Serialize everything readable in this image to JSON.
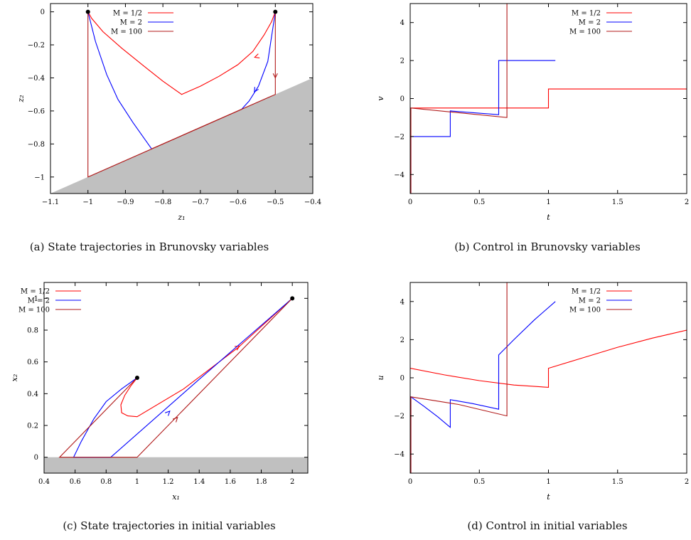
{
  "chart_data": [
    {
      "type": "line",
      "caption": "(a) State trajectories in Brunovsky variables",
      "xlabel": "z₁",
      "ylabel": "z₂",
      "xlim": [
        -1.1,
        -0.4
      ],
      "ylim": [
        -1.1,
        0.05
      ],
      "xticks": [
        -1.1,
        -1,
        -0.9,
        -0.8,
        -0.7,
        -0.6,
        -0.5,
        -0.4
      ],
      "xtick_labels": [
        "−1.1",
        "−1",
        "−0.9",
        "−0.8",
        "−0.7",
        "−0.6",
        "−0.5",
        "−0.4"
      ],
      "yticks": [
        0,
        -0.2,
        -0.4,
        -0.6,
        -0.8,
        -1
      ],
      "ytick_labels": [
        "0",
        "−0.2",
        "−0.4",
        "−0.6",
        "−0.8",
        "−1"
      ],
      "legend_position": "top-center",
      "shaded_region": {
        "color": "#c0c0c0",
        "polygon": [
          [
            -1.1,
            -1.1
          ],
          [
            -0.4,
            -0.4
          ],
          [
            -0.4,
            -1.1
          ]
        ]
      },
      "markers": [
        [
          -1,
          0
        ],
        [
          -0.5,
          0
        ]
      ],
      "series": [
        {
          "name": "M = 1/2",
          "color": "#ff0000",
          "segments": [
            [
              [
                -1,
                0
              ],
              [
                -0.99,
                -0.04
              ],
              [
                -0.96,
                -0.12
              ],
              [
                -0.91,
                -0.22
              ],
              [
                -0.85,
                -0.33
              ],
              [
                -0.8,
                -0.42
              ],
              [
                -0.75,
                -0.5
              ],
              [
                -0.7,
                -0.45
              ],
              [
                -0.65,
                -0.39
              ],
              [
                -0.6,
                -0.32
              ],
              [
                -0.56,
                -0.24
              ],
              [
                -0.53,
                -0.14
              ],
              [
                -0.51,
                -0.06
              ],
              [
                -0.5,
                0
              ]
            ]
          ],
          "arrows": [
            {
              "at": [
                -0.535,
                -0.26
              ],
              "to": [
                -0.555,
                -0.275
              ]
            }
          ]
        },
        {
          "name": "M = 2",
          "color": "#0000ff",
          "segments": [
            [
              [
                -1,
                0
              ],
              [
                -0.98,
                -0.18
              ],
              [
                -0.95,
                -0.38
              ],
              [
                -0.92,
                -0.53
              ],
              [
                -0.88,
                -0.67
              ],
              [
                -0.83,
                -0.83
              ]
            ],
            [
              [
                -0.5,
                0
              ],
              [
                -0.52,
                -0.3
              ],
              [
                -0.545,
                -0.45
              ],
              [
                -0.57,
                -0.54
              ],
              [
                -0.59,
                -0.59
              ]
            ]
          ],
          "arrows": [
            {
              "at": [
                -0.548,
                -0.455
              ],
              "to": [
                -0.556,
                -0.485
              ]
            }
          ]
        },
        {
          "name": "M = 100",
          "color": "#b01818",
          "segments": [
            [
              [
                -1,
                0
              ],
              [
                -1,
                -1
              ],
              [
                -0.5,
                -0.5
              ],
              [
                -0.5,
                0
              ]
            ],
            [
              [
                -0.83,
                -0.83
              ],
              [
                -0.59,
                -0.59
              ]
            ]
          ],
          "arrows": [
            {
              "at": [
                -0.5,
                -0.36
              ],
              "to": [
                -0.5,
                -0.4
              ]
            }
          ]
        }
      ]
    },
    {
      "type": "line",
      "caption": "(b) Control in Brunovsky variables",
      "xlabel": "t",
      "ylabel": "v",
      "xlim": [
        0,
        2
      ],
      "ylim": [
        -5,
        5
      ],
      "xticks": [
        0,
        0.5,
        1,
        1.5,
        2
      ],
      "xtick_labels": [
        "0",
        "0.5",
        "1",
        "1.5",
        "2"
      ],
      "yticks": [
        4,
        2,
        0,
        -2,
        -4
      ],
      "ytick_labels": [
        "4",
        "2",
        "0",
        "−2",
        "−4"
      ],
      "legend_position": "top-right",
      "series": [
        {
          "name": "M = 1/2",
          "color": "#ff0000",
          "segments": [
            [
              [
                0,
                -0.5
              ],
              [
                1,
                -0.5
              ],
              [
                1,
                0.5
              ],
              [
                2,
                0.5
              ]
            ]
          ]
        },
        {
          "name": "M = 2",
          "color": "#0000ff",
          "segments": [
            [
              [
                0.005,
                -5
              ],
              [
                0.005,
                -2
              ],
              [
                0.29,
                -2
              ],
              [
                0.29,
                -0.65
              ],
              [
                0.64,
                -0.85
              ],
              [
                0.64,
                2
              ],
              [
                1.05,
                2
              ]
            ]
          ]
        },
        {
          "name": "M = 100",
          "color": "#b01818",
          "segments": [
            [
              [
                0.005,
                -5
              ],
              [
                0.005,
                -0.5
              ],
              [
                0.7,
                -1
              ],
              [
                0.7,
                5
              ]
            ]
          ]
        }
      ]
    },
    {
      "type": "line",
      "caption": "(c) State trajectories in initial variables",
      "xlabel": "x₁",
      "ylabel": "x₂",
      "xlim": [
        0.4,
        2.1
      ],
      "ylim": [
        -0.1,
        1.1
      ],
      "xticks": [
        0.4,
        0.6,
        0.8,
        1,
        1.2,
        1.4,
        1.6,
        1.8,
        2
      ],
      "xtick_labels": [
        "0.4",
        "0.6",
        "0.8",
        "1",
        "1.2",
        "1.4",
        "1.6",
        "1.8",
        "2"
      ],
      "yticks": [
        1,
        0.8,
        0.6,
        0.4,
        0.2,
        0
      ],
      "ytick_labels": [
        "1",
        "0.8",
        "0.6",
        "0.4",
        "0.2",
        "0"
      ],
      "legend_position": "top-left",
      "shaded_region": {
        "color": "#c0c0c0",
        "polygon": [
          [
            0.4,
            -0.1
          ],
          [
            0.4,
            0
          ],
          [
            2.1,
            0
          ],
          [
            2.1,
            -0.1
          ]
        ]
      },
      "markers": [
        [
          1,
          0.5
        ],
        [
          2,
          1
        ]
      ],
      "series": [
        {
          "name": "M = 1/2",
          "color": "#ff0000",
          "segments": [
            [
              [
                1,
                0.5
              ],
              [
                0.96,
                0.45
              ],
              [
                0.92,
                0.39
              ],
              [
                0.895,
                0.33
              ],
              [
                0.9,
                0.28
              ],
              [
                0.94,
                0.26
              ],
              [
                1,
                0.255
              ],
              [
                1.3,
                0.43
              ],
              [
                1.65,
                0.69
              ],
              [
                2,
                1
              ]
            ]
          ],
          "arrows": [
            {
              "at": [
                1.64,
                0.688
              ],
              "to": [
                1.66,
                0.7
              ]
            }
          ]
        },
        {
          "name": "M = 2",
          "color": "#0000ff",
          "segments": [
            [
              [
                1,
                0.5
              ],
              [
                0.9,
                0.43
              ],
              [
                0.8,
                0.35
              ],
              [
                0.72,
                0.24
              ],
              [
                0.64,
                0.1
              ],
              [
                0.59,
                0
              ],
              [
                0.83,
                0
              ],
              [
                1.4,
                0.49
              ],
              [
                2,
                1
              ]
            ]
          ],
          "arrows": [
            {
              "at": [
                1.19,
                0.27
              ],
              "to": [
                1.21,
                0.29
              ]
            }
          ]
        },
        {
          "name": "M = 100",
          "color": "#b01818",
          "segments": [
            [
              [
                1,
                0.5
              ],
              [
                0.5,
                0
              ],
              [
                1,
                0
              ],
              [
                2,
                1
              ]
            ]
          ],
          "arrows": [
            {
              "at": [
                1.24,
                0.23
              ],
              "to": [
                1.26,
                0.25
              ]
            }
          ]
        }
      ]
    },
    {
      "type": "line",
      "caption": "(d) Control in initial variables",
      "xlabel": "t",
      "ylabel": "u",
      "xlim": [
        0,
        2
      ],
      "ylim": [
        -5,
        5
      ],
      "xticks": [
        0,
        0.5,
        1,
        1.5,
        2
      ],
      "xtick_labels": [
        "0",
        "0.5",
        "1",
        "1.5",
        "2"
      ],
      "yticks": [
        4,
        2,
        0,
        -2,
        -4
      ],
      "ytick_labels": [
        "4",
        "2",
        "0",
        "−2",
        "−4"
      ],
      "legend_position": "top-right",
      "series": [
        {
          "name": "M = 1/2",
          "color": "#ff0000",
          "segments": [
            [
              [
                0,
                0.5
              ],
              [
                0.25,
                0.15
              ],
              [
                0.5,
                -0.15
              ],
              [
                0.75,
                -0.38
              ],
              [
                1,
                -0.5
              ],
              [
                1,
                0.5
              ],
              [
                1.25,
                1.05
              ],
              [
                1.5,
                1.6
              ],
              [
                1.75,
                2.08
              ],
              [
                2,
                2.5
              ]
            ]
          ]
        },
        {
          "name": "M = 2",
          "color": "#0000ff",
          "segments": [
            [
              [
                0.005,
                -5
              ],
              [
                0.005,
                -1
              ],
              [
                0.1,
                -1.5
              ],
              [
                0.2,
                -2.05
              ],
              [
                0.29,
                -2.6
              ],
              [
                0.29,
                -1.15
              ],
              [
                0.45,
                -1.35
              ],
              [
                0.64,
                -1.65
              ],
              [
                0.64,
                1.2
              ],
              [
                0.75,
                2
              ],
              [
                0.9,
                3.05
              ],
              [
                1.05,
                4
              ]
            ]
          ]
        },
        {
          "name": "M = 100",
          "color": "#b01818",
          "segments": [
            [
              [
                0.005,
                -5
              ],
              [
                0.005,
                -1
              ],
              [
                0.35,
                -1.4
              ],
              [
                0.7,
                -2
              ],
              [
                0.7,
                5
              ]
            ]
          ]
        }
      ]
    }
  ]
}
